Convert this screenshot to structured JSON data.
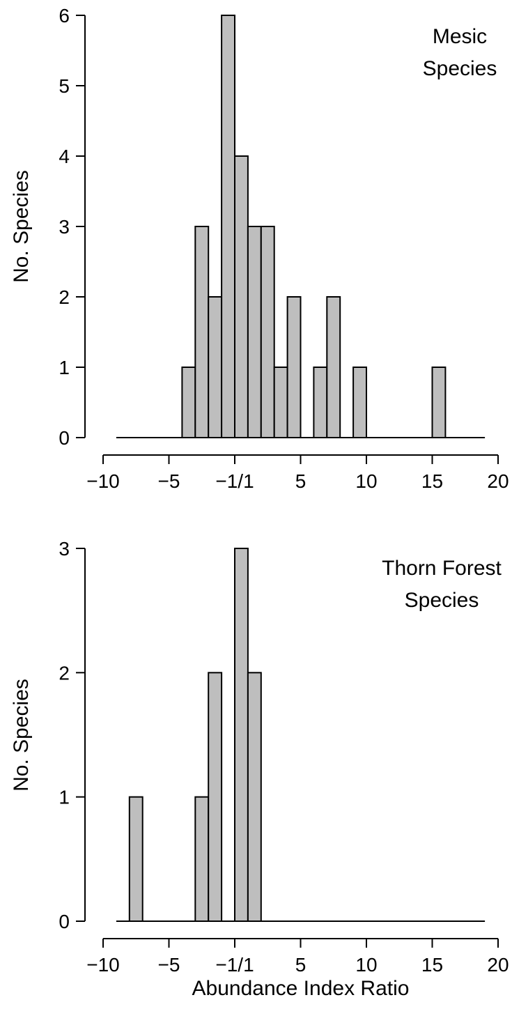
{
  "chart_data": [
    {
      "type": "bar",
      "title": "",
      "annotation": [
        "Mesic",
        "Species"
      ],
      "xlabel": "",
      "ylabel": "No. Species",
      "x_ticks": [
        -10,
        -5,
        0,
        5,
        10,
        15,
        20
      ],
      "x_tick_labels": [
        "−10",
        "−5",
        "−1/1",
        "5",
        "10",
        "15",
        "20"
      ],
      "y_ticks": [
        0,
        1,
        2,
        3,
        4,
        5,
        6
      ],
      "xlim": [
        -10,
        20
      ],
      "ylim": [
        0,
        6
      ],
      "bin_width": 1,
      "bins": [
        {
          "x0": -4,
          "x1": -3,
          "count": 1
        },
        {
          "x0": -3,
          "x1": -2,
          "count": 3
        },
        {
          "x0": -2,
          "x1": -1,
          "count": 2
        },
        {
          "x0": -1,
          "x1": 0,
          "count": 6
        },
        {
          "x0": 0,
          "x1": 1,
          "count": 4
        },
        {
          "x0": 1,
          "x1": 2,
          "count": 3
        },
        {
          "x0": 2,
          "x1": 3,
          "count": 3
        },
        {
          "x0": 3,
          "x1": 4,
          "count": 1
        },
        {
          "x0": 4,
          "x1": 5,
          "count": 2
        },
        {
          "x0": 6,
          "x1": 7,
          "count": 1
        },
        {
          "x0": 7,
          "x1": 8,
          "count": 2
        },
        {
          "x0": 9,
          "x1": 10,
          "count": 1
        },
        {
          "x0": 15,
          "x1": 16,
          "count": 1
        }
      ],
      "baseline_range": [
        -9,
        19
      ],
      "grid": false
    },
    {
      "type": "bar",
      "title": "",
      "annotation": [
        "Thorn Forest",
        "Species"
      ],
      "xlabel": "Abundance Index Ratio",
      "ylabel": "No. Species",
      "x_ticks": [
        -10,
        -5,
        0,
        5,
        10,
        15,
        20
      ],
      "x_tick_labels": [
        "−10",
        "−5",
        "−1/1",
        "5",
        "10",
        "15",
        "20"
      ],
      "y_ticks": [
        0,
        1,
        2,
        3
      ],
      "xlim": [
        -10,
        20
      ],
      "ylim": [
        0,
        3
      ],
      "bin_width": 1,
      "bins": [
        {
          "x0": -8,
          "x1": -7,
          "count": 1
        },
        {
          "x0": -3,
          "x1": -2,
          "count": 1
        },
        {
          "x0": -2,
          "x1": -1,
          "count": 2
        },
        {
          "x0": 0,
          "x1": 1,
          "count": 3
        },
        {
          "x0": 1,
          "x1": 2,
          "count": 2
        }
      ],
      "baseline_range": [
        -9,
        19
      ],
      "grid": false
    }
  ]
}
